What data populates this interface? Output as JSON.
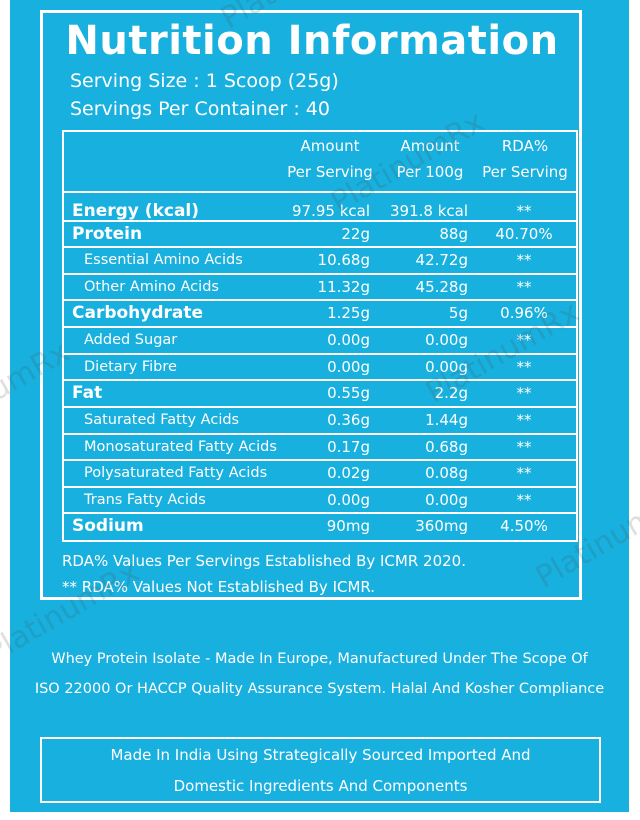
{
  "title": "Nutrition Information",
  "serving_size": "Serving Size : 1 Scoop (25g)",
  "servings_per_container": "Servings Per Container : 40",
  "table": {
    "headers": {
      "amount_per_serving": [
        "Amount",
        "Per Serving"
      ],
      "amount_per_100g": [
        "Amount",
        "Per 100g"
      ],
      "rda_per_serving": [
        "RDA%",
        "Per Serving"
      ]
    },
    "rows": [
      {
        "name": "Energy (kcal)",
        "serving": "97.95 kcal",
        "per100g": "391.8 kcal",
        "rda": "**",
        "level": "main"
      },
      {
        "name": "Protein",
        "serving": "22g",
        "per100g": "88g",
        "rda": "40.70%",
        "level": "main"
      },
      {
        "name": "Essential Amino Acids",
        "serving": "10.68g",
        "per100g": "42.72g",
        "rda": "**",
        "level": "sub"
      },
      {
        "name": "Other Amino Acids",
        "serving": "11.32g",
        "per100g": "45.28g",
        "rda": "**",
        "level": "sub"
      },
      {
        "name": "Carbohydrate",
        "serving": "1.25g",
        "per100g": "5g",
        "rda": "0.96%",
        "level": "main"
      },
      {
        "name": "Added Sugar",
        "serving": "0.00g",
        "per100g": "0.00g",
        "rda": "**",
        "level": "sub"
      },
      {
        "name": "Dietary Fibre",
        "serving": "0.00g",
        "per100g": "0.00g",
        "rda": "**",
        "level": "sub"
      },
      {
        "name": "Fat",
        "serving": "0.55g",
        "per100g": "2.2g",
        "rda": "**",
        "level": "main"
      },
      {
        "name": "Saturated Fatty Acids",
        "serving": "0.36g",
        "per100g": "1.44g",
        "rda": "**",
        "level": "sub"
      },
      {
        "name": "Monosaturated Fatty Acids",
        "serving": "0.17g",
        "per100g": "0.68g",
        "rda": "**",
        "level": "sub"
      },
      {
        "name": "Polysaturated Fatty Acids",
        "serving": "0.02g",
        "per100g": "0.08g",
        "rda": "**",
        "level": "sub"
      },
      {
        "name": "Trans Fatty Acids",
        "serving": "0.00g",
        "per100g": "0.00g",
        "rda": "**",
        "level": "sub"
      },
      {
        "name": "Sodium",
        "serving": "90mg",
        "per100g": "360mg",
        "rda": "4.50%",
        "level": "main"
      }
    ]
  },
  "notes": [
    "RDA%  Values Per Servings Established By ICMR 2020.",
    "** RDA%  Values Not Established By ICMR."
  ],
  "description": [
    "Whey Protein Isolate - Made In Europe, Manufactured Under The Scope Of",
    "ISO 22000 Or HACCP Quality Assurance System. Halal And Kosher Compliance"
  ],
  "footer_box": [
    "Made In India Using Strategically Sourced Imported And",
    "Domestic Ingredients And Components"
  ],
  "watermark": "PlatinumRx",
  "colors": {
    "background": "#18b0de",
    "text": "#ffffff"
  }
}
